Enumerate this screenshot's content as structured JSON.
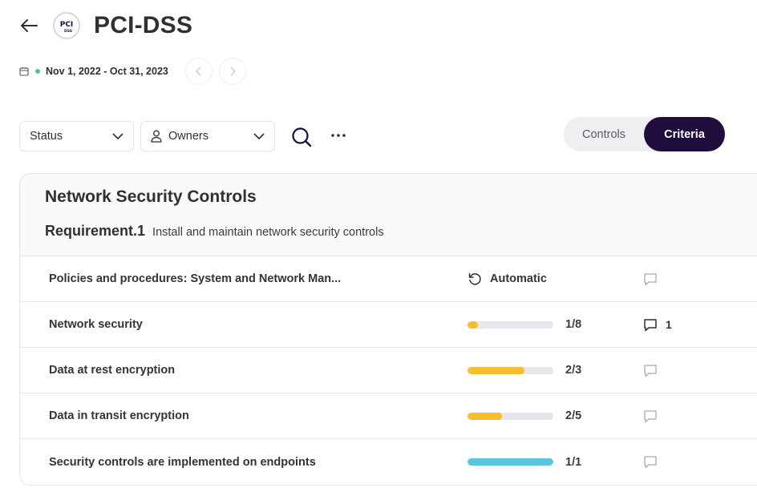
{
  "header": {
    "title": "PCI-DSS",
    "logo_text": "PCI",
    "logo_sub": "DSS"
  },
  "date": {
    "range": "Nov 1, 2022 - Oct 31, 2023",
    "status_color": "#58c48c"
  },
  "filters": {
    "status_label": "Status",
    "owners_label": "Owners"
  },
  "toggle": {
    "controls_label": "Controls",
    "criteria_label": "Criteria",
    "active": "Criteria"
  },
  "section": {
    "title": "Network Security Controls",
    "requirement_code": "Requirement.1",
    "requirement_desc": "Install and maintain network security controls"
  },
  "rows": [
    {
      "name": "Policies and procedures: System and Network Man...",
      "type": "automatic",
      "auto_label": "Automatic",
      "comments": ""
    },
    {
      "name": "Network security",
      "type": "progress",
      "done": 1,
      "total": 8,
      "fraction": "1/8",
      "color": "#f6be2c",
      "comments": "1"
    },
    {
      "name": "Data at rest encryption",
      "type": "progress",
      "done": 2,
      "total": 3,
      "fraction": "2/3",
      "color": "#f6be2c",
      "comments": ""
    },
    {
      "name": "Data in transit encryption",
      "type": "progress",
      "done": 2,
      "total": 5,
      "fraction": "2/5",
      "color": "#f6be2c",
      "comments": ""
    },
    {
      "name": "Security controls are implemented on endpoints",
      "type": "progress",
      "done": 1,
      "total": 1,
      "fraction": "1/1",
      "color": "#5bc4de",
      "comments": ""
    }
  ],
  "colors": {
    "accent_dark": "#1f0d3d",
    "progress_partial": "#f6be2c",
    "progress_complete": "#5bc4de"
  }
}
